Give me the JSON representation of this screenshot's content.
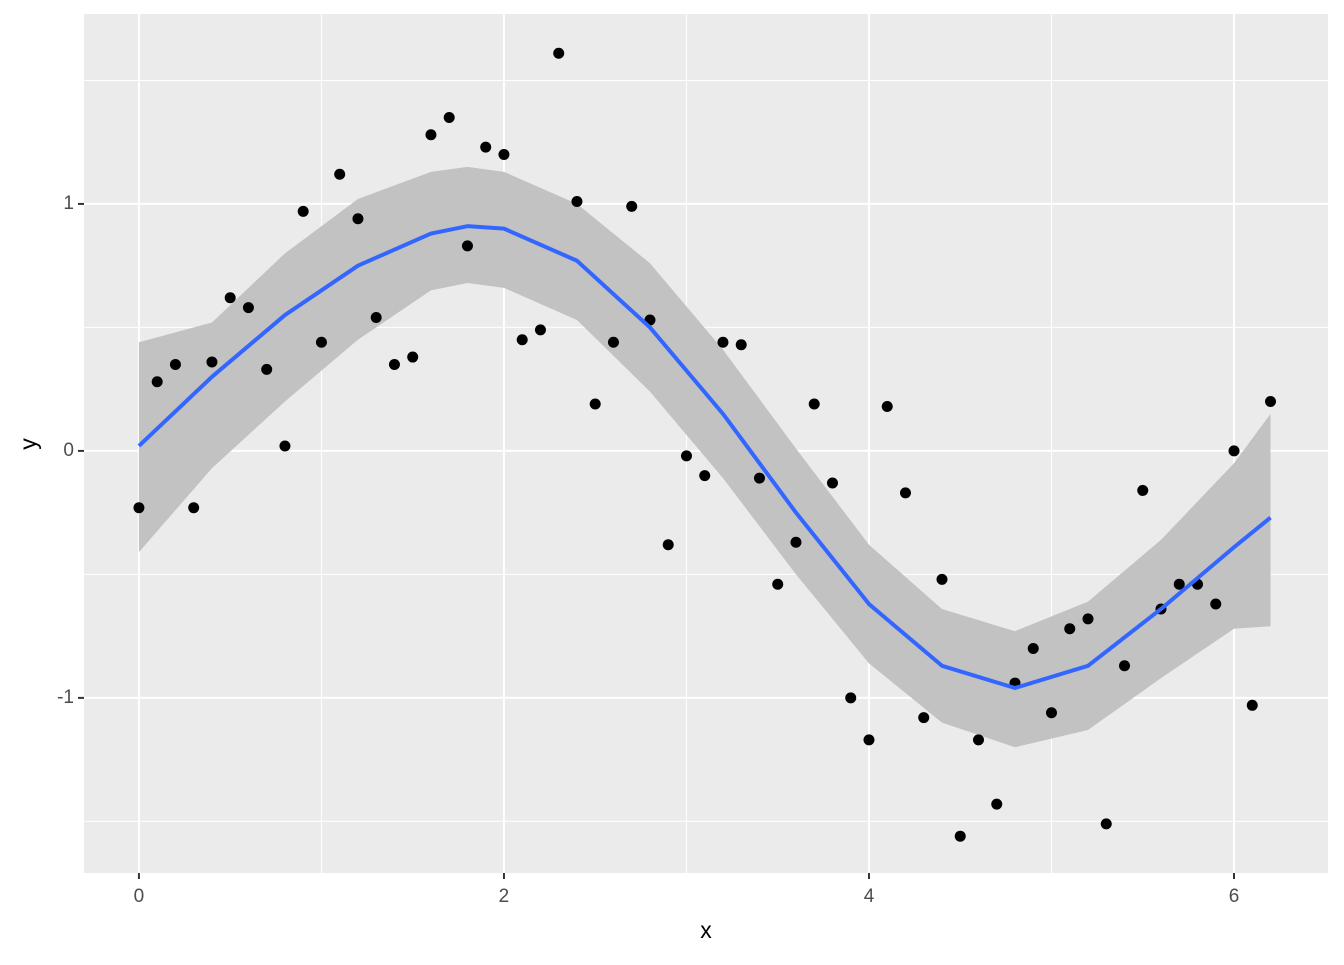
{
  "chart_data": {
    "type": "scatter",
    "x_label": "x",
    "y_label": "y",
    "xlim": [
      -0.301,
      6.515
    ],
    "ylim": [
      -1.709,
      1.769
    ],
    "xticks": [
      0,
      2,
      4,
      6
    ],
    "yticks": [
      -1,
      0,
      1
    ],
    "x_minor_breaks": [
      1,
      3,
      5
    ],
    "y_minor_breaks": [
      -1.5,
      -0.5,
      0.5,
      1.5
    ],
    "grid": true,
    "panel_color": "#ebebeb",
    "points": {
      "color": "#000000",
      "x": [
        0,
        0.1,
        0.2,
        0.3,
        0.4,
        0.5,
        0.6,
        0.7,
        0.8,
        0.9,
        1,
        1.1,
        1.2,
        1.3,
        1.4,
        1.5,
        1.6,
        1.7,
        1.8,
        1.9,
        2,
        2.1,
        2.2,
        2.3,
        2.4,
        2.5,
        2.6,
        2.7,
        2.8,
        2.9,
        3,
        3.1,
        3.2,
        3.3,
        3.4,
        3.5,
        3.6,
        3.7,
        3.8,
        3.9,
        4,
        4.1,
        4.2,
        4.3,
        4.4,
        4.5,
        4.6,
        4.7,
        4.8,
        4.9,
        5,
        5.1,
        5.2,
        5.3,
        5.4,
        5.5,
        5.6,
        5.7,
        5.8,
        5.9,
        6,
        6.1,
        6.2
      ],
      "y": [
        -0.23,
        0.28,
        0.35,
        -0.23,
        0.36,
        0.62,
        0.58,
        0.33,
        0.02,
        0.97,
        0.44,
        1.12,
        0.94,
        0.54,
        0.35,
        0.38,
        1.28,
        1.35,
        0.83,
        1.23,
        1.2,
        0.45,
        0.49,
        1.61,
        1.01,
        0.19,
        0.44,
        0.99,
        0.53,
        -0.38,
        -0.02,
        -0.1,
        0.44,
        0.43,
        -0.11,
        -0.54,
        -0.37,
        0.19,
        -0.13,
        -1.0,
        -1.17,
        0.18,
        -0.17,
        -1.08,
        -0.52,
        -1.56,
        -1.17,
        -1.43,
        -0.94,
        -0.8,
        -1.06,
        -0.72,
        -0.68,
        -1.51,
        -0.87,
        -0.16,
        -0.64,
        -0.54,
        -0.54,
        -0.62,
        0.0,
        -1.03,
        0.2
      ]
    },
    "smooth": {
      "color": "#3366ff",
      "fill": "#c2c2c2",
      "x": [
        0,
        0.4,
        0.8,
        1.2,
        1.6,
        1.8,
        2.0,
        2.4,
        2.8,
        3.2,
        3.6,
        4.0,
        4.4,
        4.8,
        5.2,
        5.6,
        6.0,
        6.2
      ],
      "y": [
        0.02,
        0.3,
        0.55,
        0.75,
        0.88,
        0.91,
        0.9,
        0.77,
        0.5,
        0.15,
        -0.25,
        -0.62,
        -0.87,
        -0.96,
        -0.87,
        -0.64,
        -0.39,
        -0.27
      ],
      "ymin": [
        -0.41,
        -0.07,
        0.2,
        0.45,
        0.65,
        0.68,
        0.66,
        0.53,
        0.24,
        -0.11,
        -0.5,
        -0.86,
        -1.1,
        -1.2,
        -1.13,
        -0.92,
        -0.72,
        -0.71
      ],
      "ymax": [
        0.44,
        0.52,
        0.8,
        1.02,
        1.13,
        1.15,
        1.13,
        1.0,
        0.76,
        0.41,
        0.01,
        -0.38,
        -0.64,
        -0.73,
        -0.61,
        -0.36,
        -0.05,
        0.15
      ]
    }
  }
}
